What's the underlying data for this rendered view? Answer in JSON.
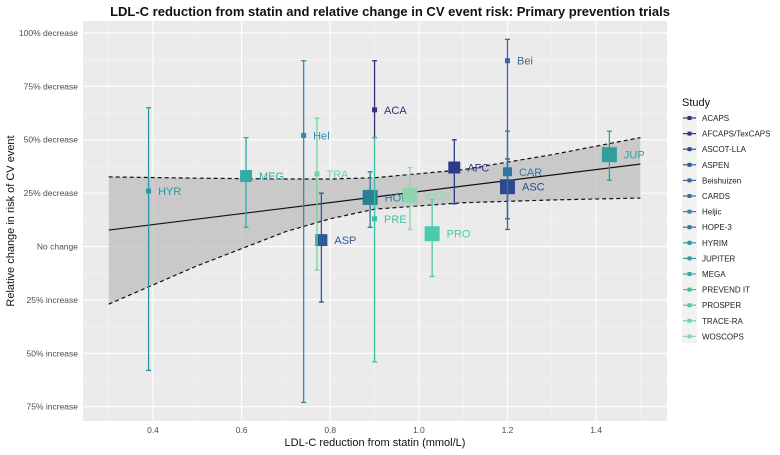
{
  "chart_data": {
    "type": "scatter",
    "title": "LDL-C reduction from statin and relative change in CV event risk: Primary prevention trials",
    "xlabel": "LDL-C reduction from statin (mmol/L)",
    "ylabel": "Relative change in risk of CV event",
    "xlim": [
      0.242,
      1.56
    ],
    "ylim": [
      -81.7,
      105.6
    ],
    "y_meaning": "percent decrease in risk (negative = increase)",
    "x_ticks": [
      0.4,
      0.6,
      0.8,
      1.0,
      1.2,
      1.4
    ],
    "x_tick_labels": [
      "0.4",
      "0.6",
      "0.8",
      "1.0",
      "1.2",
      "1.4"
    ],
    "y_ticks": [
      100,
      75,
      50,
      25,
      0,
      -25,
      -50,
      -75
    ],
    "y_tick_labels": [
      "100% decrease",
      "75% decrease",
      "50% decrease",
      "25% decrease",
      "No change",
      "25% increase",
      "50% increase",
      "75% increase"
    ],
    "grid": true,
    "legend": {
      "title": "Study",
      "placement": "right"
    },
    "points": [
      {
        "study": "ACAPS",
        "label": "ACA",
        "x": 0.9,
        "y": 64,
        "lo": 51,
        "hi": 87,
        "size": 1,
        "color": "#35307a"
      },
      {
        "study": "AFCAPS/TexCAPS",
        "label": "AFC",
        "x": 1.08,
        "y": 37,
        "lo": 20,
        "hi": 50,
        "size": 3,
        "color": "#2f3a86"
      },
      {
        "study": "ASCOT-LLA",
        "label": "ASC",
        "x": 1.2,
        "y": 28,
        "lo": 13,
        "hi": 41,
        "size": 4,
        "color": "#2c4a8f"
      },
      {
        "study": "ASPEN",
        "label": "ASP",
        "x": 0.78,
        "y": 3,
        "lo": -26,
        "hi": 25,
        "size": 3,
        "color": "#2d5b9a"
      },
      {
        "study": "Beishuizen",
        "label": "Bei",
        "x": 1.2,
        "y": 87,
        "lo": 8,
        "hi": 97,
        "size": 1,
        "color": "#3569a3"
      },
      {
        "study": "CARDS",
        "label": "CAR",
        "x": 1.2,
        "y": 35,
        "lo": 13,
        "hi": 54,
        "size": 2,
        "color": "#2c77a2"
      },
      {
        "study": "Heljic",
        "label": "Hel",
        "x": 0.74,
        "y": 52,
        "lo": -73,
        "hi": 87,
        "size": 1,
        "color": "#3188ad"
      },
      {
        "study": "HOPE-3",
        "label": "HOP",
        "x": 0.89,
        "y": 23,
        "lo": 9,
        "hi": 35,
        "size": 4,
        "color": "#2a7f95"
      },
      {
        "study": "HYRIM",
        "label": "HYR",
        "x": 0.39,
        "y": 26,
        "lo": -58,
        "hi": 65,
        "size": 1,
        "color": "#2b96a3"
      },
      {
        "study": "JUPITER",
        "label": "JUP",
        "x": 1.43,
        "y": 43,
        "lo": 31,
        "hi": 54,
        "size": 4,
        "color": "#2f9e9c"
      },
      {
        "study": "MEGA",
        "label": "MEG",
        "x": 0.61,
        "y": 33,
        "lo": 9,
        "hi": 51,
        "size": 3,
        "color": "#34aca2"
      },
      {
        "study": "PREVEND IT",
        "label": "PRE",
        "x": 0.9,
        "y": 13,
        "lo": -54,
        "hi": 51,
        "size": 1,
        "color": "#3dbfa5"
      },
      {
        "study": "PROSPER",
        "label": "PRO",
        "x": 1.03,
        "y": 6,
        "lo": -14,
        "hi": 22,
        "size": 4,
        "color": "#4ccba8"
      },
      {
        "study": "TRACE-RA",
        "label": "TRA",
        "x": 0.77,
        "y": 34,
        "lo": -11,
        "hi": 60,
        "size": 1,
        "color": "#6fd3ae"
      },
      {
        "study": "WOSCOPS",
        "label": "WOS",
        "x": 0.98,
        "y": 24,
        "lo": 8,
        "hi": 37,
        "size": 4,
        "color": "#8fd5ad"
      }
    ],
    "fit": {
      "x": [
        0.3,
        1.5
      ],
      "y": [
        7.7,
        38.6
      ]
    },
    "fit_ci": {
      "x": [
        0.3,
        0.5,
        0.7,
        0.8,
        0.9,
        1.1,
        1.3,
        1.5
      ],
      "upper": [
        32.6,
        32,
        31.6,
        31.6,
        32.2,
        36,
        43,
        51
      ],
      "lower": [
        -27,
        -9,
        7,
        13,
        17.5,
        20.5,
        21.8,
        22.7
      ]
    }
  }
}
